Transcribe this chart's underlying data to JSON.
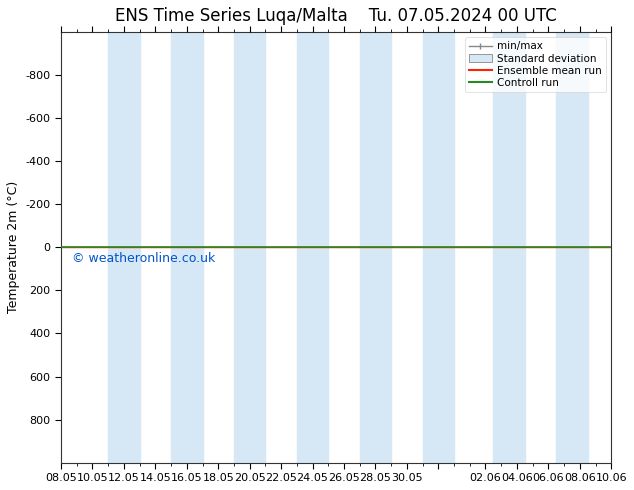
{
  "title_left": "ENS Time Series Luqa/Malta",
  "title_right": "Tu. 07.05.2024 00 UTC",
  "ylabel": "Temperature 2m (°C)",
  "watermark": "© weatheronline.co.uk",
  "ylim_bottom": 1000,
  "ylim_top": -1000,
  "yticks": [
    -800,
    -600,
    -400,
    -200,
    0,
    200,
    400,
    600,
    800
  ],
  "xtick_labels": [
    "08.05",
    "10.05",
    "12.05",
    "14.05",
    "16.05",
    "18.05",
    "20.05",
    "22.05",
    "24.05",
    "26.05",
    "28.05",
    "30.05",
    "",
    "02.06",
    "04.06",
    "06.06",
    "08.06",
    "10.06"
  ],
  "xtick_positions": [
    0,
    2,
    4,
    6,
    8,
    10,
    12,
    14,
    16,
    18,
    20,
    22,
    24,
    27,
    29,
    31,
    33,
    35
  ],
  "shade_pairs": [
    [
      3,
      5
    ],
    [
      7,
      9
    ],
    [
      11,
      13
    ],
    [
      15,
      17
    ],
    [
      19,
      21
    ],
    [
      23,
      25
    ],
    [
      27.5,
      29.5
    ],
    [
      31.5,
      33.5
    ]
  ],
  "shade_color": "#d6e8f5",
  "line_y": 0,
  "green_line_color": "#228b22",
  "red_line_color": "#ff2200",
  "bg_color": "#ffffff",
  "plot_bg_color": "#ffffff",
  "legend_labels": [
    "min/max",
    "Standard deviation",
    "Ensemble mean run",
    "Controll run"
  ],
  "tick_fontsize": 8,
  "label_fontsize": 9,
  "title_fontsize": 12,
  "watermark_color": "#0055cc",
  "watermark_fontsize": 9,
  "x_total": 35
}
